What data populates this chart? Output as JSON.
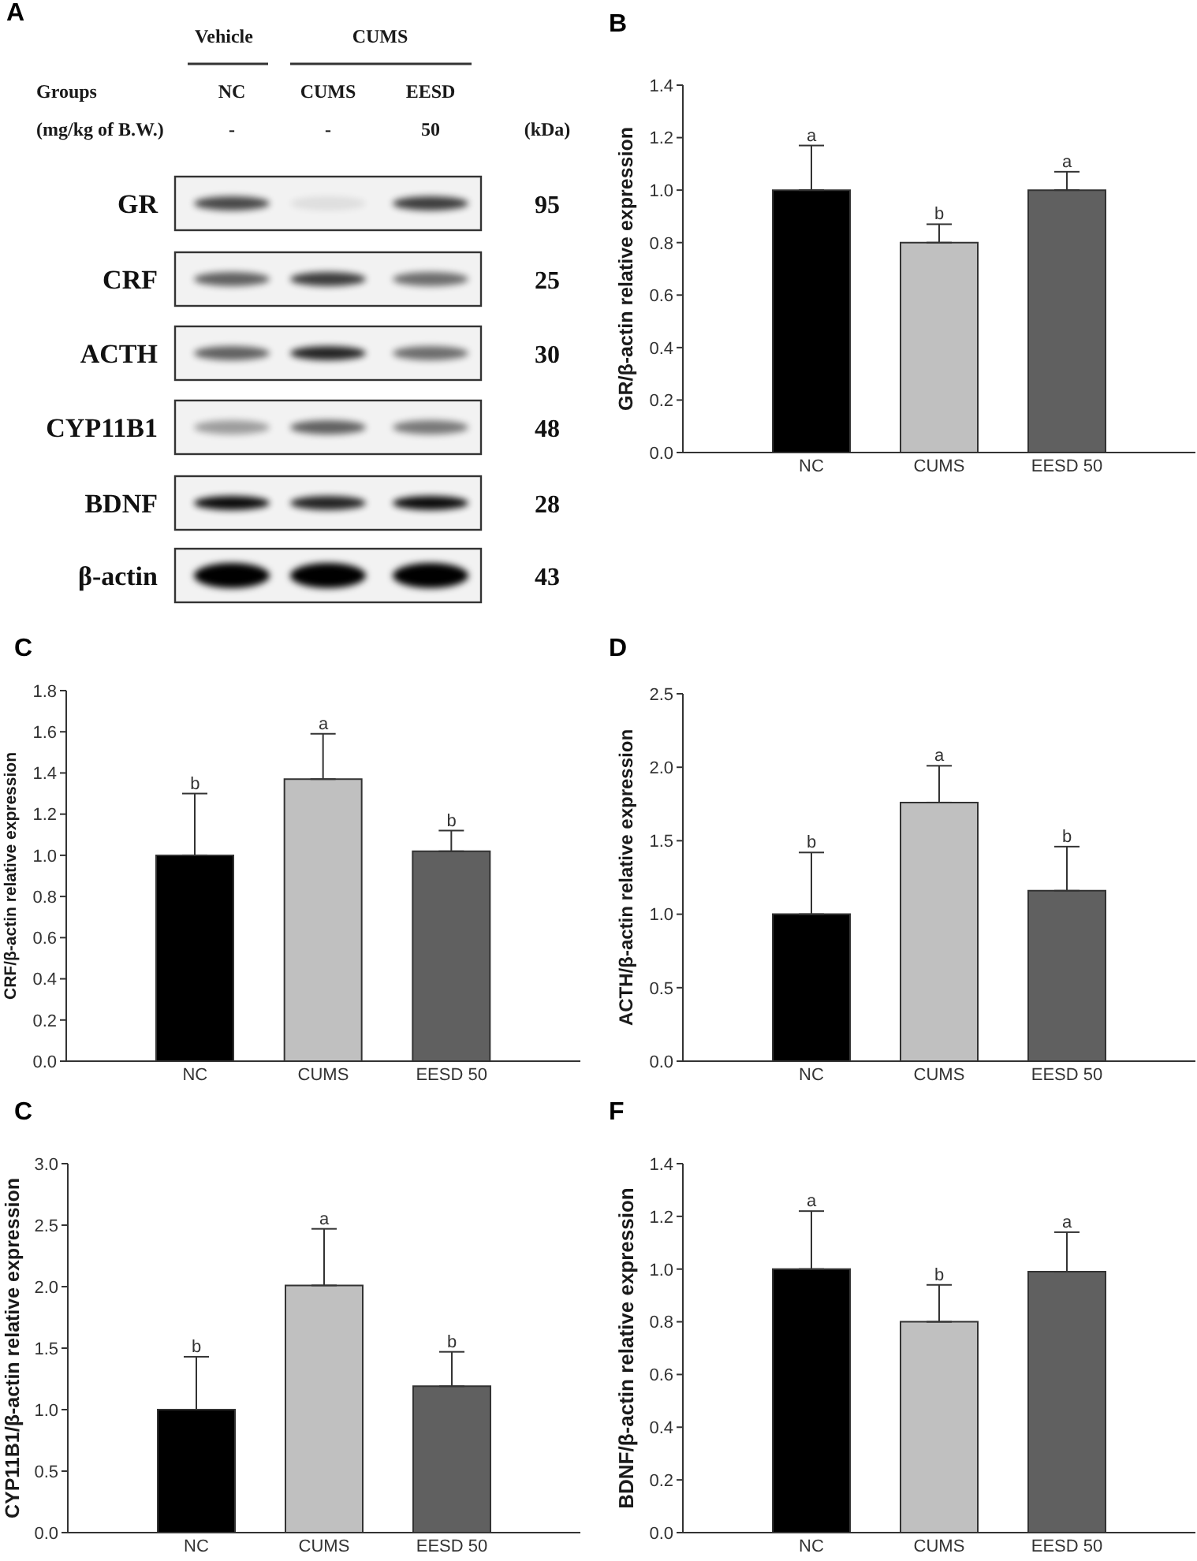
{
  "chart_data": [
    {
      "type": "other",
      "title": "A",
      "annotations": [
        "Vehicle",
        "CUMS",
        "Groups",
        "NC",
        "CUMS",
        "EESD",
        "(mg/kg of B.W.)",
        "-",
        "-",
        "50",
        "(kDa)",
        "GR",
        "95",
        "CRF",
        "25",
        "ACTH",
        "30",
        "CYP11B1",
        "48",
        "BDNF",
        "28",
        "β-actin",
        "43"
      ]
    },
    {
      "type": "bar",
      "title": "B",
      "ylabel": "GR/β-actin relative expression",
      "categories": [
        "NC",
        "CUMS",
        "EESD 50"
      ],
      "values": [
        1.0,
        0.8,
        1.0
      ],
      "colors": [
        "#000000",
        "#c0c0c0",
        "#606060"
      ],
      "errors": [
        [
          1.0,
          1.17
        ],
        [
          0.8,
          0.87
        ],
        [
          1.0,
          1.07
        ]
      ],
      "ylim": [
        0,
        1.4
      ],
      "yticks": [
        {
          "value": 0,
          "label": "0.0"
        },
        0.2,
        0.4,
        0.6,
        0.8,
        {
          "value": 1,
          "label": "1.0"
        },
        1.2,
        1.4
      ],
      "annotations": [
        {
          "text": "a",
          "x": "NC",
          "y": 1.17
        },
        {
          "text": "b",
          "x": "CUMS",
          "y": 0.87
        },
        {
          "text": "a",
          "x": "EESD 50",
          "y": 1.07
        }
      ]
    },
    {
      "type": "bar",
      "title": "C",
      "ylabel": "CRF/β-actin relative expression",
      "categories": [
        "NC",
        "CUMS",
        "EESD 50"
      ],
      "values": [
        1.0,
        1.37,
        1.02
      ],
      "colors": [
        "#000000",
        "#c0c0c0",
        "#606060"
      ],
      "errors": [
        [
          1.0,
          1.3
        ],
        [
          1.37,
          1.59
        ],
        [
          1.02,
          1.12
        ]
      ],
      "ylim": [
        0,
        1.8
      ],
      "yticks": [
        {
          "value": 0,
          "label": "0.0"
        },
        0.2,
        0.4,
        0.6,
        0.8,
        {
          "value": 1,
          "label": "1.0"
        },
        1.2,
        1.4,
        1.6,
        1.8
      ],
      "annotations": [
        {
          "text": "b",
          "x": "NC",
          "y": 1.3
        },
        {
          "text": "a",
          "x": "CUMS",
          "y": 1.59
        },
        {
          "text": "b",
          "x": "EESD 50",
          "y": 1.12
        }
      ]
    },
    {
      "type": "bar",
      "title": "D",
      "ylabel": "ACTH/β-actin relative expression",
      "categories": [
        "NC",
        "CUMS",
        "EESD 50"
      ],
      "values": [
        1.0,
        1.76,
        1.16
      ],
      "colors": [
        "#000000",
        "#c0c0c0",
        "#606060"
      ],
      "errors": [
        [
          1.0,
          1.42
        ],
        [
          1.76,
          2.01
        ],
        [
          1.16,
          1.46
        ]
      ],
      "ylim": [
        0,
        2.5
      ],
      "yticks": [
        {
          "value": 0,
          "label": "0.0"
        },
        0.5,
        {
          "value": 1,
          "label": "1.0"
        },
        1.5,
        {
          "value": 2,
          "label": "2.0"
        },
        2.5
      ],
      "annotations": [
        {
          "text": "b",
          "x": "NC",
          "y": 1.42
        },
        {
          "text": "a",
          "x": "CUMS",
          "y": 2.01
        },
        {
          "text": "b",
          "x": "EESD 50",
          "y": 1.46
        }
      ]
    },
    {
      "type": "bar",
      "title": "C",
      "ylabel": "CYP11B1/β-actin relative expression",
      "categories": [
        "NC",
        "CUMS",
        "EESD 50"
      ],
      "values": [
        1.0,
        2.01,
        1.19
      ],
      "colors": [
        "#000000",
        "#c0c0c0",
        "#606060"
      ],
      "errors": [
        [
          1.0,
          1.43
        ],
        [
          2.01,
          2.47
        ],
        [
          1.19,
          1.47
        ]
      ],
      "ylim": [
        0,
        3
      ],
      "yticks": [
        {
          "value": 0,
          "label": "0.0"
        },
        0.5,
        {
          "value": 1,
          "label": "1.0"
        },
        1.5,
        {
          "value": 2,
          "label": "2.0"
        },
        2.5,
        {
          "value": 3,
          "label": "3.0"
        }
      ],
      "annotations": [
        {
          "text": "b",
          "x": "NC",
          "y": 1.43
        },
        {
          "text": "a",
          "x": "CUMS",
          "y": 2.47
        },
        {
          "text": "b",
          "x": "EESD 50",
          "y": 1.47
        }
      ]
    },
    {
      "type": "bar",
      "title": "F",
      "ylabel": "BDNF/β-actin relative expression",
      "categories": [
        "NC",
        "CUMS",
        "EESD 50"
      ],
      "values": [
        1.0,
        0.8,
        0.99
      ],
      "colors": [
        "#000000",
        "#c0c0c0",
        "#606060"
      ],
      "errors": [
        [
          1.0,
          1.22
        ],
        [
          0.8,
          0.94
        ],
        [
          0.99,
          1.14
        ]
      ],
      "ylim": [
        0,
        1.4
      ],
      "yticks": [
        {
          "value": 0,
          "label": "0.0"
        },
        0.2,
        0.4,
        0.6,
        0.8,
        {
          "value": 1,
          "label": "1.0"
        },
        1.2,
        1.4
      ],
      "annotations": [
        {
          "text": "a",
          "x": "NC",
          "y": 1.22
        },
        {
          "text": "b",
          "x": "CUMS",
          "y": 0.94
        },
        {
          "text": "a",
          "x": "EESD 50",
          "y": 1.14
        }
      ]
    }
  ]
}
